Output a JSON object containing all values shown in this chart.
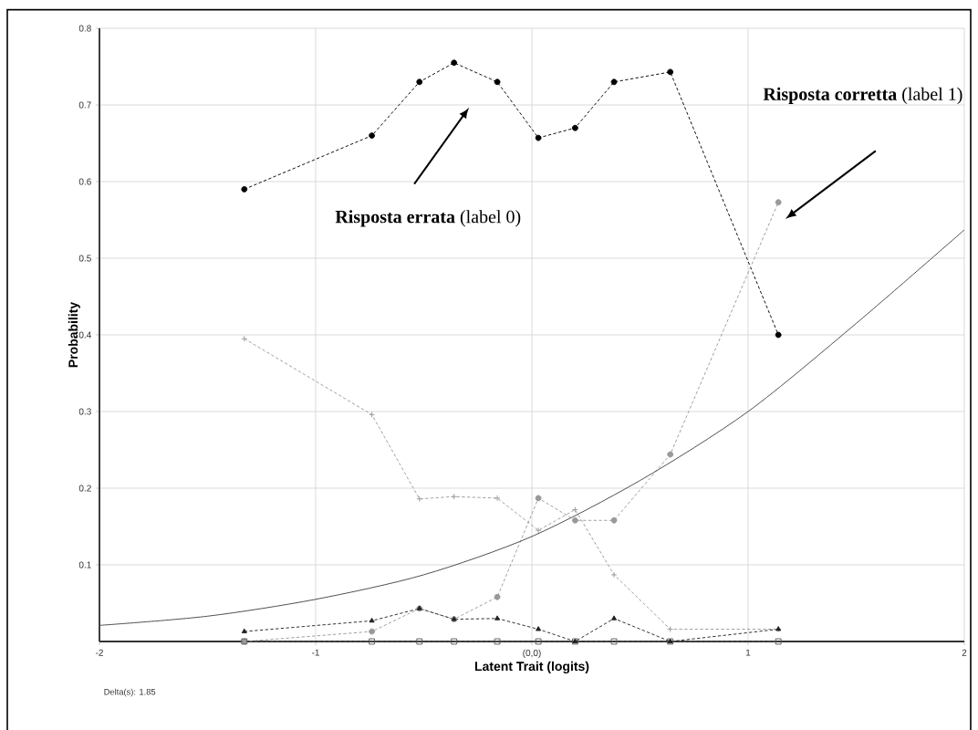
{
  "chart_data": {
    "type": "line",
    "xlabel": "Latent Trait (logits)",
    "ylabel": "Probability",
    "x": [
      -1.33,
      -0.74,
      -0.52,
      -0.36,
      -0.16,
      0.03,
      0.2,
      0.38,
      0.64,
      1.14
    ],
    "xlim": [
      -2,
      2
    ],
    "ylim": [
      0,
      0.8
    ],
    "xticks": [
      -2,
      -1,
      {
        "value": 0,
        "label": "(0,0)"
      },
      1,
      2
    ],
    "yticks": [
      0.1,
      0.2,
      0.3,
      0.4,
      0.5,
      0.6,
      0.7,
      0.8
    ],
    "grid": true,
    "series": [
      {
        "color": "#000000",
        "marker": "circle",
        "line_style": "dashed",
        "values": [
          0.59,
          0.66,
          0.73,
          0.755,
          0.73,
          0.657,
          0.67,
          0.73,
          0.743,
          0.4
        ]
      },
      {
        "color": "#999999",
        "marker": "cross",
        "line_style": "dashed",
        "values": [
          0.395,
          0.296,
          0.186,
          0.189,
          0.187,
          0.145,
          0.172,
          0.087,
          0.016,
          0.016
        ]
      },
      {
        "color": "#999999",
        "marker": "circle",
        "line_style": "dashed",
        "values": [
          0,
          0.013,
          0.043,
          0.029,
          0.058,
          0.187,
          0.158,
          0.158,
          0.244,
          0.573
        ]
      },
      {
        "color": "#222222",
        "marker": "triangle",
        "line_style": "dashed",
        "values": [
          0.013,
          0.027,
          0.043,
          0.029,
          0.03,
          0.016,
          0,
          0.03,
          0,
          0.016
        ]
      },
      {
        "color": "#555555",
        "marker": "square",
        "line_style": "dashed",
        "values": [
          0,
          0,
          0,
          0,
          0,
          0,
          0,
          0,
          0,
          0
        ]
      },
      {
        "color": "#444444",
        "marker": "none",
        "line_style": "solid",
        "x": [
          -2,
          -1.5,
          -1,
          -0.5,
          0,
          0.5,
          1,
          1.5,
          2
        ],
        "values": [
          0.021,
          0.033,
          0.055,
          0.087,
          0.137,
          0.21,
          0.3,
          0.415,
          0.537
        ]
      }
    ],
    "annotations": [
      "**Risposta errata** (label 0)",
      "**Risposta corretta** (label 1)",
      "Delta(s): 1.85"
    ]
  }
}
